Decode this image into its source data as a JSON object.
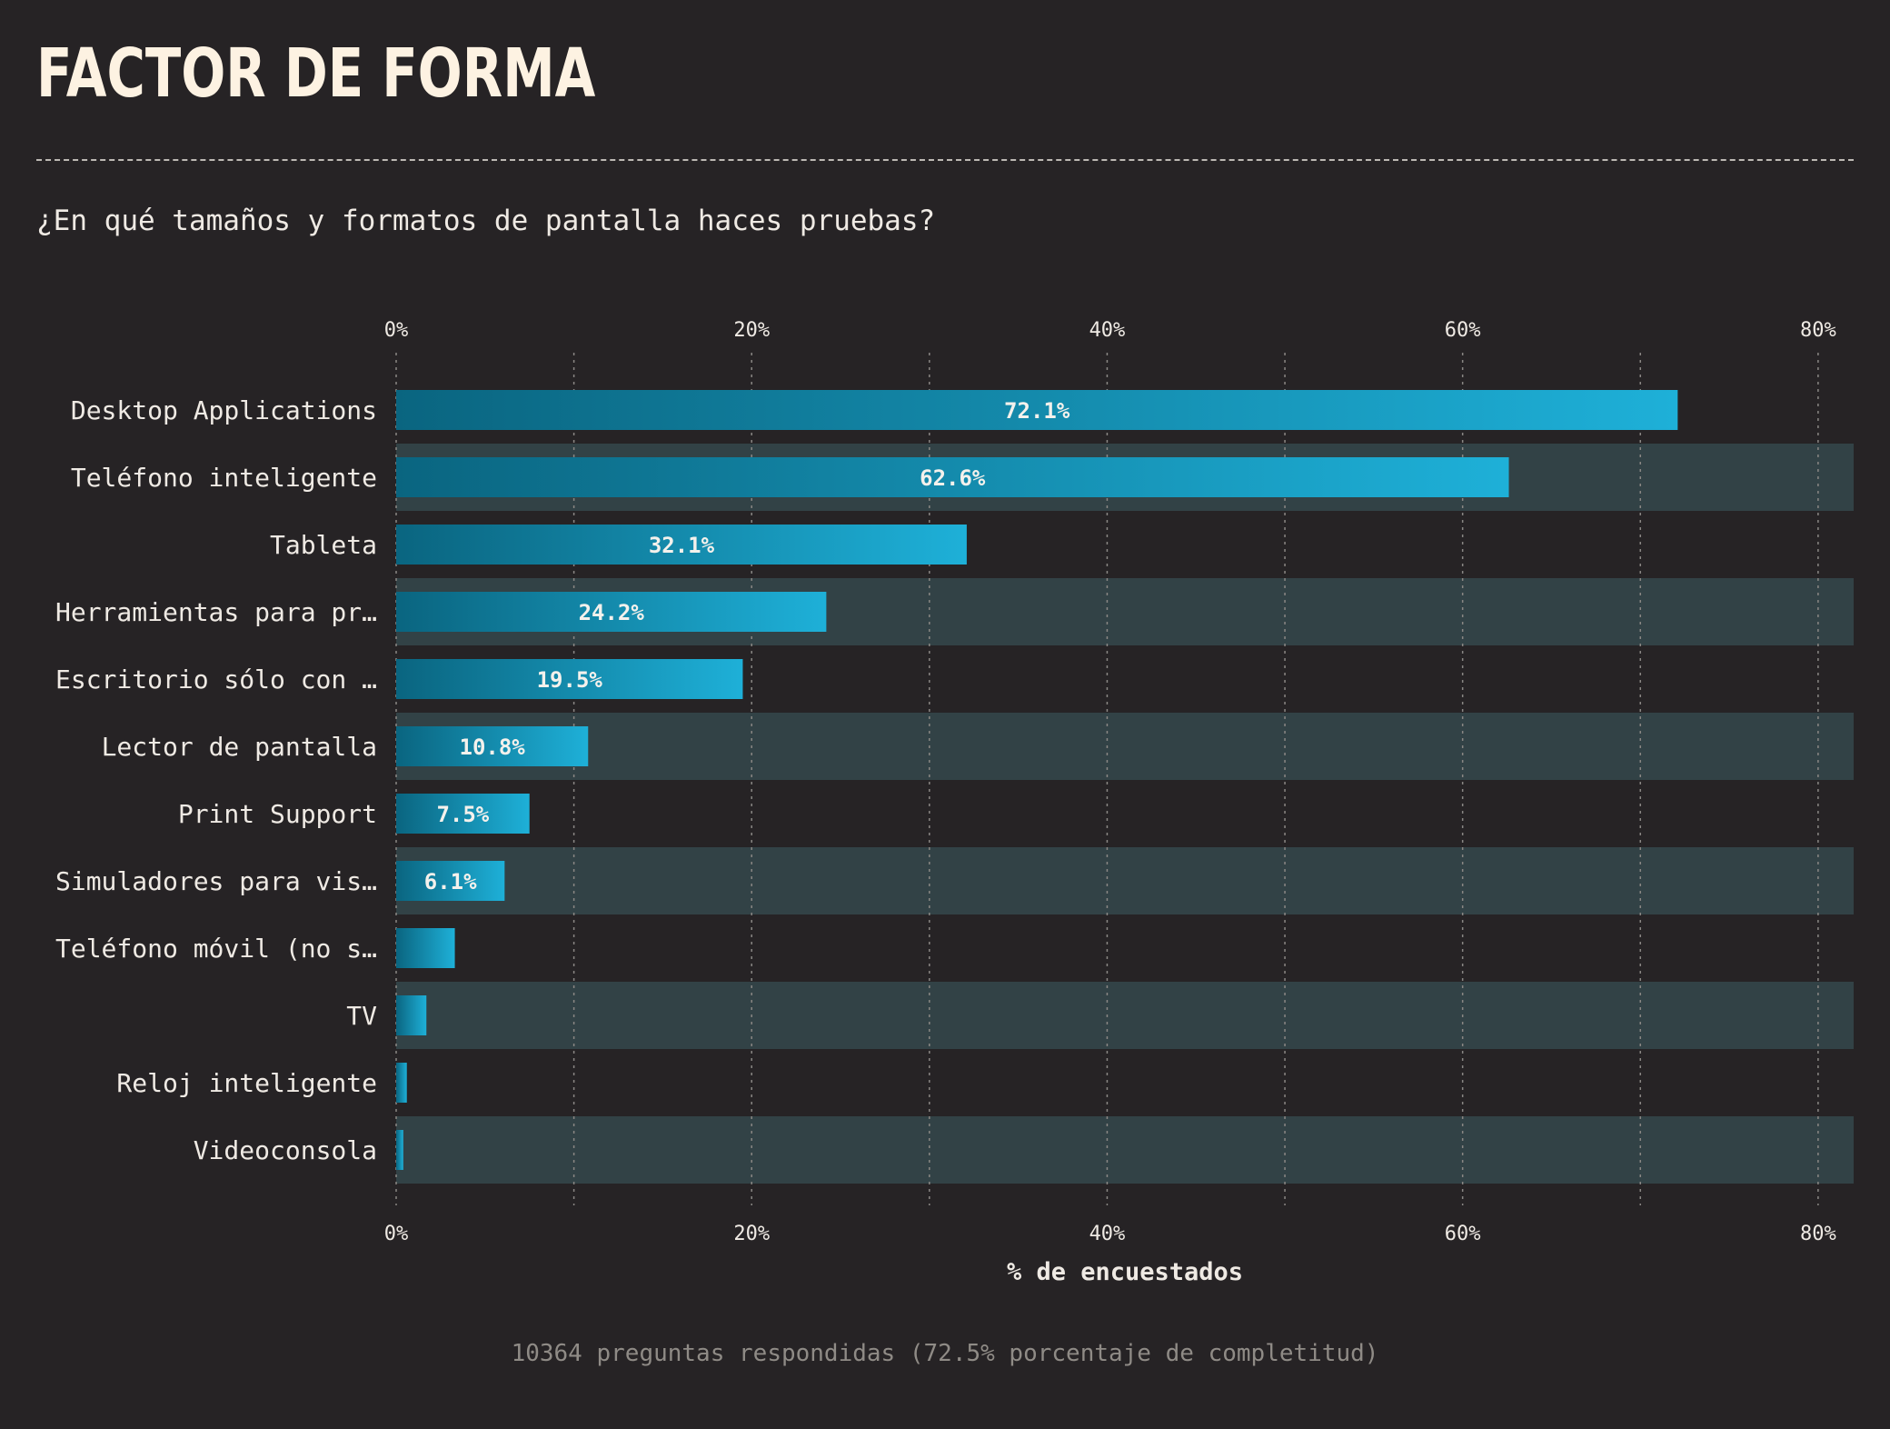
{
  "header": {
    "title": "FACTOR DE FORMA",
    "question": "¿En qué tamaños y formatos de pantalla haces pruebas?"
  },
  "footer": {
    "summary": "10364 preguntas respondidas (72.5% porcentaje de completitud)"
  },
  "colors": {
    "background": "#262325",
    "band": "#324246",
    "bar_start": "#0a6580",
    "bar_end": "#1eb0d8",
    "text": "#efeae4",
    "title": "#fdf2e2",
    "muted": "#8f8b86"
  },
  "chart_data": {
    "type": "bar",
    "orientation": "horizontal",
    "xlabel": "% de encuestados",
    "xlim": [
      0,
      82
    ],
    "ticks": [
      0,
      20,
      40,
      60,
      80
    ],
    "tick_labels": [
      "0%",
      "20%",
      "40%",
      "60%",
      "80%"
    ],
    "minor_grid": [
      10,
      30,
      50,
      70
    ],
    "grid": true,
    "categories": [
      "Desktop Applications",
      "Teléfono inteligente",
      "Tableta",
      "Herramientas para pr…",
      "Escritorio sólo con …",
      "Lector de pantalla",
      "Print Support",
      "Simuladores para vis…",
      "Teléfono móvil (no s…",
      "TV",
      "Reloj inteligente",
      "Videoconsola"
    ],
    "values": [
      72.1,
      62.6,
      32.1,
      24.2,
      19.5,
      10.8,
      7.5,
      6.1,
      3.3,
      1.7,
      0.6,
      0.4
    ],
    "data_labels": [
      "72.1%",
      "62.6%",
      "32.1%",
      "24.2%",
      "19.5%",
      "10.8%",
      "7.5%",
      "6.1%",
      "",
      "",
      "",
      ""
    ]
  }
}
